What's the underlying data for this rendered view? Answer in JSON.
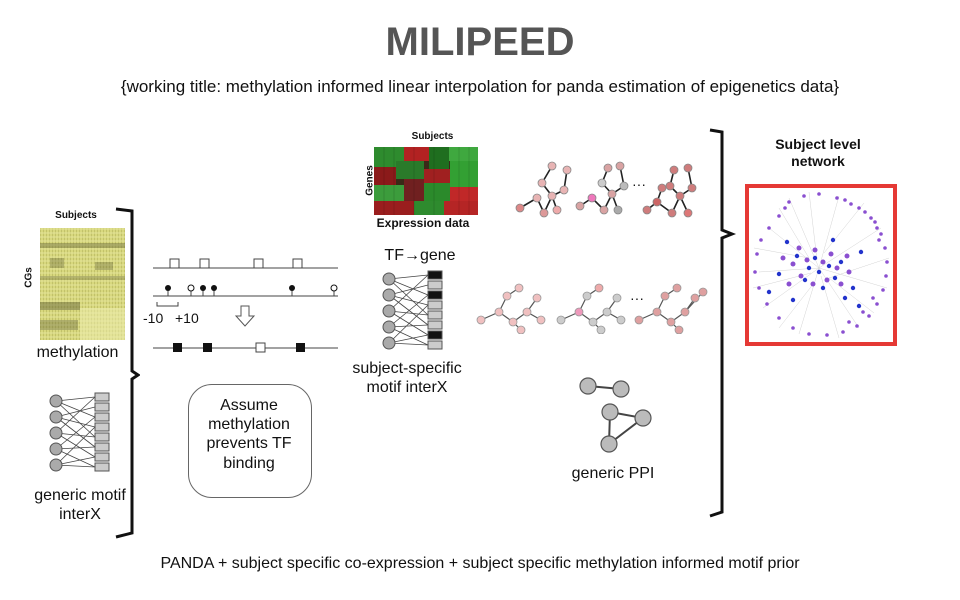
{
  "title": "MILIPEED",
  "subtitle": "{working title: methylation informed linear interpolation for panda estimation of epigenetics data}",
  "footer": "PANDA + subject specific co-expression + subject specific methylation informed motif prior",
  "methylation": {
    "header": "Subjects",
    "row_label": "CGs",
    "caption": "methylation"
  },
  "generic_motif": {
    "caption": "generic motif interX"
  },
  "middle": {
    "minus_label": "-10",
    "plus_label": "+10",
    "assume_text": "Assume methylation prevents TF binding"
  },
  "expression": {
    "header": "Subjects",
    "row_label": "Genes",
    "caption": "Expression data"
  },
  "tf_gene": {
    "header": "TF→gene",
    "caption": "subject-specific motif interX"
  },
  "ppi": {
    "caption": "generic PPI"
  },
  "ellipsis": "···",
  "subject_network": {
    "caption": "Subject level network"
  },
  "colors": {
    "title": "#555555",
    "frame": "#e53935",
    "heatmap_yellow": "#d6d67c",
    "network_purple": "#8a4fd0",
    "network_blue": "#2233cc"
  }
}
